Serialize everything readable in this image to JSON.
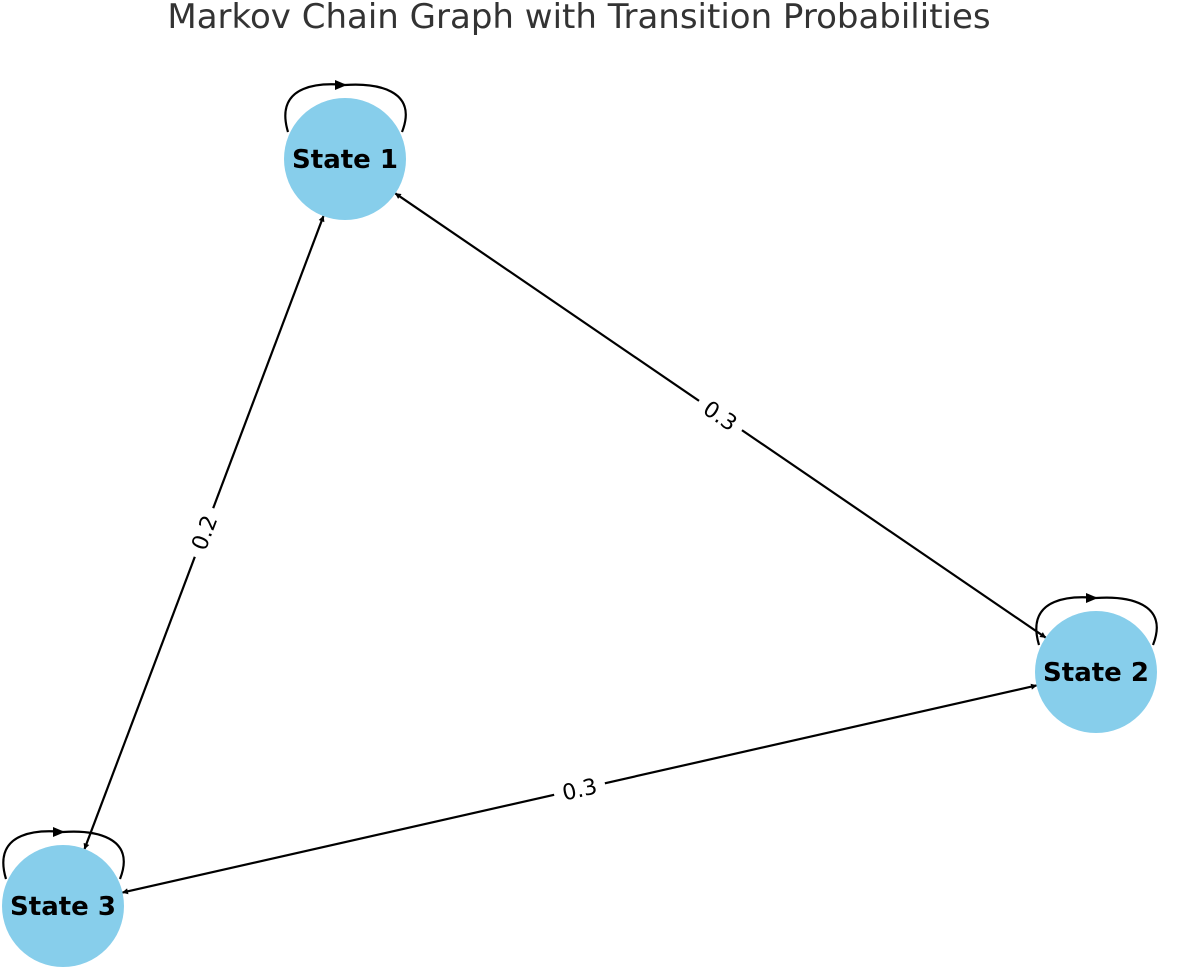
{
  "diagram": {
    "title": "Markov Chain Graph with Transition Probabilities",
    "node_color": "#87CEEB",
    "edge_color": "#000000",
    "nodes": [
      {
        "id": "s1",
        "label": "State 1"
      },
      {
        "id": "s2",
        "label": "State 2"
      },
      {
        "id": "s3",
        "label": "State 3"
      }
    ],
    "edges": [
      {
        "from": "s1",
        "to": "s1",
        "self_loop": true,
        "label": ""
      },
      {
        "from": "s2",
        "to": "s2",
        "self_loop": true,
        "label": ""
      },
      {
        "from": "s3",
        "to": "s3",
        "self_loop": true,
        "label": ""
      },
      {
        "from": "s1",
        "to": "s2",
        "bidirectional": true,
        "label": "0.3"
      },
      {
        "from": "s1",
        "to": "s3",
        "bidirectional": true,
        "label": "0.2"
      },
      {
        "from": "s2",
        "to": "s3",
        "bidirectional": true,
        "label": "0.3"
      }
    ]
  }
}
